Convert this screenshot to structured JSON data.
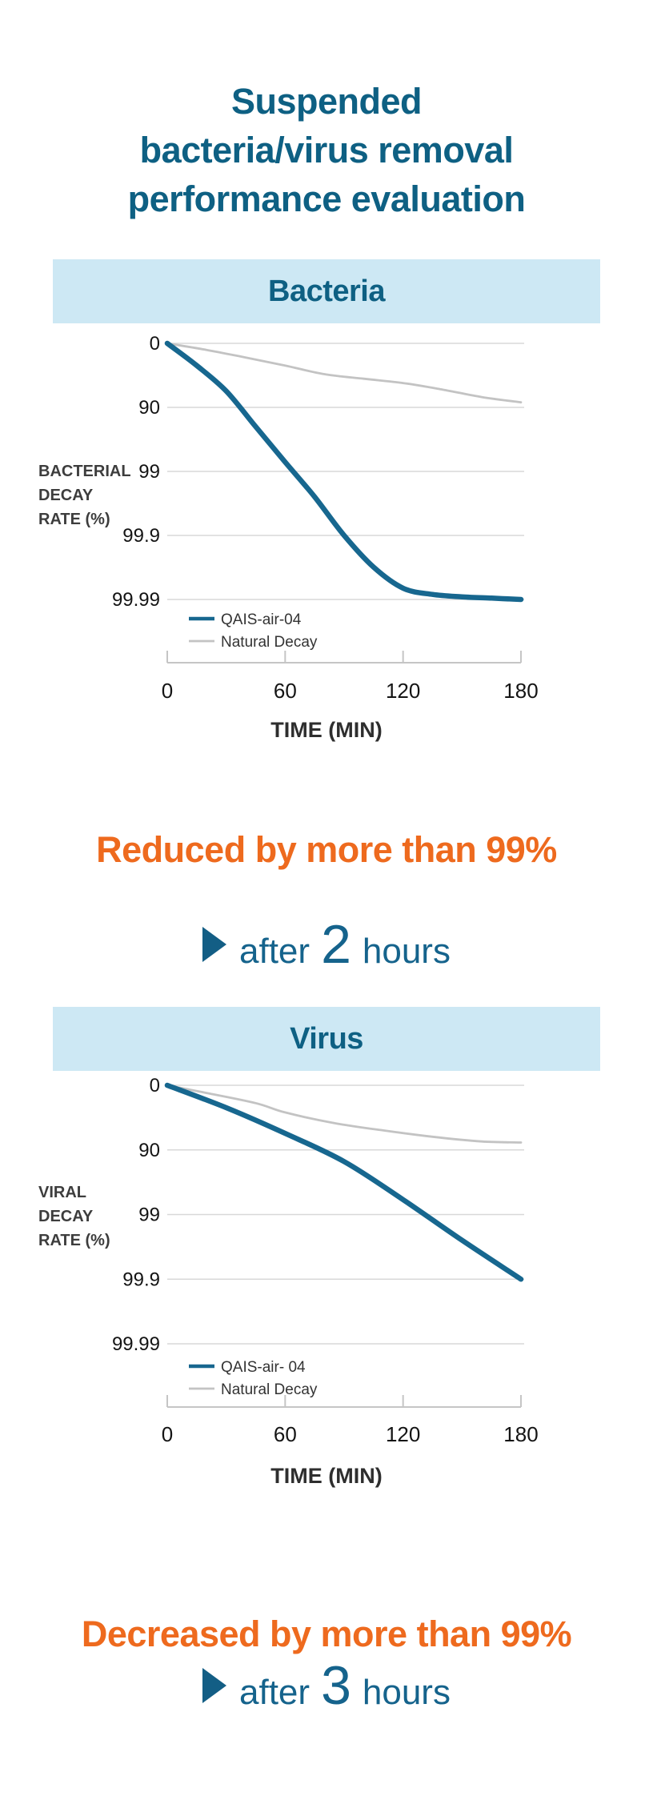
{
  "page": {
    "title_lines": [
      "Suspended",
      "bacteria/virus removal",
      "performance evaluation"
    ]
  },
  "colors": {
    "accent_teal": "#0e6083",
    "accent_orange": "#ee6a1e",
    "callout_teal": "#15638c",
    "band_background": "#cde8f4",
    "primary_line": "#17678f",
    "secondary_line": "#c3c3c3",
    "gridline": "#d8d8d8",
    "axis": "#c5c5c5"
  },
  "sections": [
    {
      "header": "Bacteria",
      "callout": {
        "lead": "Reduced by more than 99%",
        "after_prefix": "after",
        "after_number": "2",
        "after_suffix": "hours"
      }
    },
    {
      "header": "Virus",
      "callout": {
        "lead": "Decreased by more than 99%",
        "after_prefix": "after",
        "after_number": "3",
        "after_suffix": "hours"
      }
    }
  ],
  "chart_data": [
    {
      "type": "line",
      "title": "Bacteria",
      "xlabel": "TIME (MIN)",
      "ylabel": "BACTERIAL DECAY RATE (%)",
      "ylabel_lines": [
        "BACTERIAL",
        "DECAY",
        "RATE (%)"
      ],
      "xlim": [
        0,
        180
      ],
      "x_ticks": [
        0,
        60,
        120,
        180
      ],
      "x_tick_labels": [
        "0",
        "60",
        "120",
        "180"
      ],
      "y_tick_labels": [
        "0",
        "90",
        "99",
        "99.9",
        "99.99"
      ],
      "y_scale": "log-removal: each gridline is one decade (0, 90, 99, 99.9, 99.99 % decay)",
      "grid": true,
      "legend_position": "inside-bottom-left",
      "series": [
        {
          "name": "QAIS-air-04",
          "color": "#17678f",
          "x": [
            0,
            15,
            30,
            45,
            60,
            75,
            90,
            105,
            120,
            135,
            150,
            165,
            180
          ],
          "decay_pct": [
            0,
            55,
            82,
            95,
            98.6,
            99.6,
            99.9,
            99.968,
            99.985,
            99.988,
            99.989,
            99.9895,
            99.99
          ]
        },
        {
          "name": "Natural Decay",
          "color": "#c3c3c3",
          "x": [
            0,
            20,
            40,
            60,
            80,
            100,
            120,
            140,
            160,
            180
          ],
          "decay_pct": [
            0,
            21,
            40,
            55,
            67,
            72,
            76,
            81,
            85.5,
            88
          ]
        }
      ]
    },
    {
      "type": "line",
      "title": "Virus",
      "xlabel": "TIME (MIN)",
      "ylabel": "VIRAL DECAY RATE (%)",
      "ylabel_lines": [
        "VIRAL",
        "DECAY",
        "RATE (%)"
      ],
      "xlim": [
        0,
        180
      ],
      "x_ticks": [
        0,
        60,
        120,
        180
      ],
      "x_tick_labels": [
        "0",
        "60",
        "120",
        "180"
      ],
      "y_tick_labels": [
        "0",
        "90",
        "99",
        "99.9",
        "99.99"
      ],
      "y_scale": "log-removal: each gridline is one decade (0, 90, 99, 99.9, 99.99 % decay)",
      "grid": true,
      "legend_position": "inside-bottom-left",
      "series": [
        {
          "name": "QAIS-air- 04",
          "color": "#17678f",
          "x": [
            0,
            30,
            60,
            90,
            120,
            150,
            180
          ],
          "decay_pct": [
            0,
            55,
            82,
            93.4,
            98.3,
            99.6,
            99.9
          ]
        },
        {
          "name": "Natural Decay",
          "color": "#c3c3c3",
          "x": [
            0,
            20,
            45,
            60,
            85,
            110,
            135,
            160,
            180
          ],
          "decay_pct": [
            0,
            24,
            47,
            62,
            74,
            80,
            84,
            86.5,
            87
          ]
        }
      ]
    }
  ]
}
